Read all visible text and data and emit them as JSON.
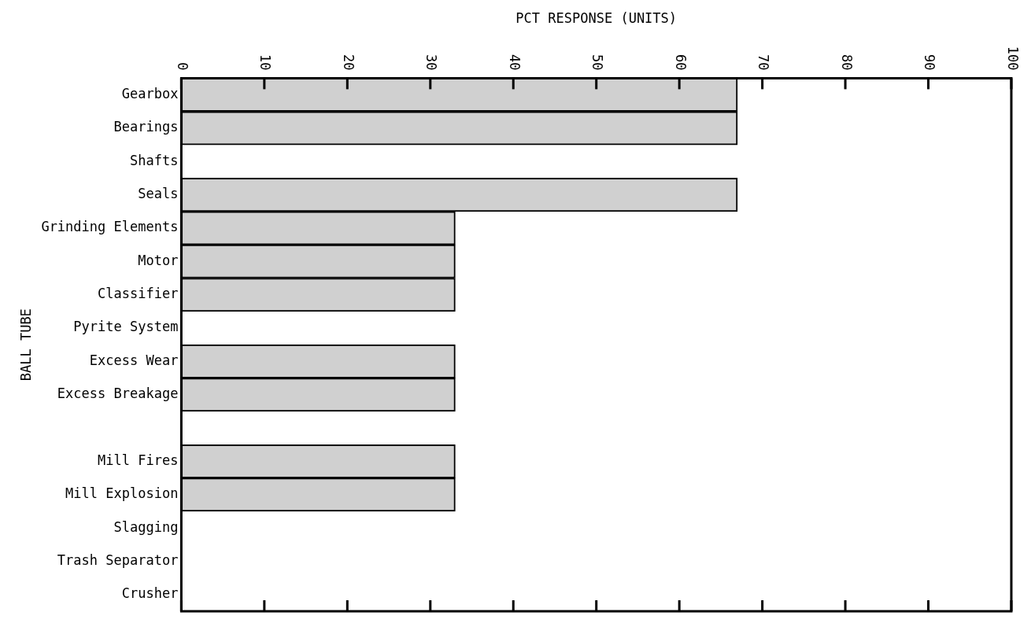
{
  "chart_data": {
    "type": "bar",
    "orientation": "horizontal",
    "xlabel": "PCT RESPONSE (UNITS)",
    "ylabel": "BALL TUBE",
    "categories": [
      "Gearbox",
      "Bearings",
      "Shafts",
      "Seals",
      "Grinding Elements",
      "Motor",
      "Classifier",
      "Pyrite System",
      "Excess Wear",
      "Excess Breakage",
      null,
      "Mill Fires",
      "Mill Explosion",
      "Slagging",
      "Trash Separator",
      "Crusher"
    ],
    "values": [
      67,
      67,
      0,
      67,
      33,
      33,
      33,
      0,
      33,
      33,
      null,
      33,
      33,
      0,
      0,
      0
    ],
    "color": "#d0d0d0",
    "xlim": [
      0,
      100
    ],
    "xticks": [
      0,
      10,
      20,
      30,
      40,
      50,
      60,
      70,
      80,
      90,
      100
    ],
    "grid": false,
    "legend": false
  }
}
